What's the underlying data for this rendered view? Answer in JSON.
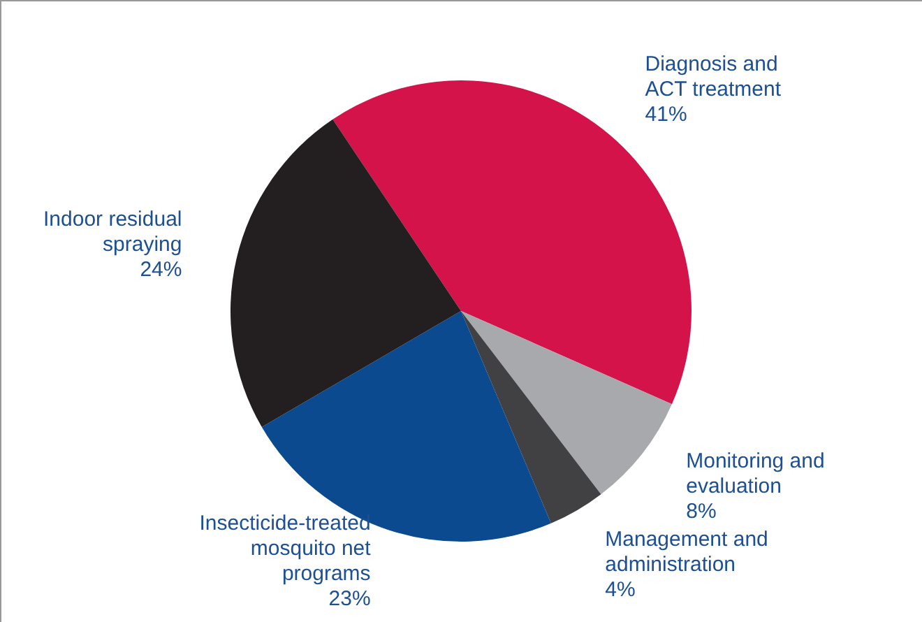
{
  "chart_data": {
    "type": "pie",
    "categories": [
      "Diagnosis and ACT treatment",
      "Monitoring and evaluation",
      "Management and administration",
      "Insecticide-treated mosquito net programs",
      "Indoor residual spraying"
    ],
    "values": [
      41,
      8,
      4,
      23,
      24
    ],
    "value_labels": [
      "41%",
      "8%",
      "4%",
      "23%",
      "24%"
    ],
    "colors": [
      "#d4134a",
      "#a7a9ac",
      "#414042",
      "#0b4a8f",
      "#231f20"
    ]
  }
}
